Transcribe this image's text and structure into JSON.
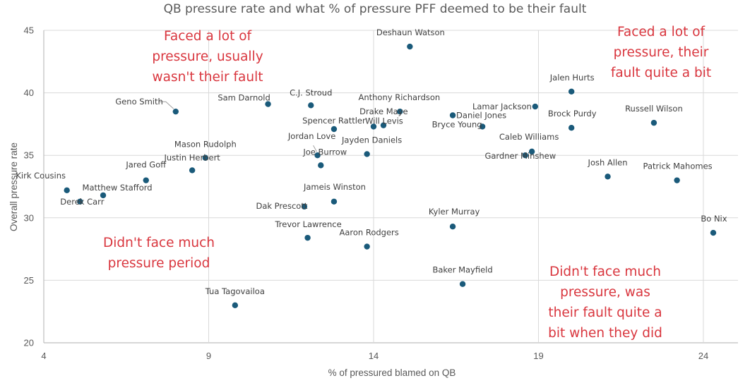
{
  "chart_data": {
    "type": "scatter",
    "title": "QB pressure rate and what % of pressure PFF deemed to be their fault",
    "xlabel": "% of pressured blamed on QB",
    "ylabel": "Overall pressure rate",
    "xlim": [
      4,
      25.05
    ],
    "ylim": [
      20,
      45
    ],
    "xticks": [
      4,
      9,
      14,
      19,
      24
    ],
    "yticks": [
      20,
      25,
      30,
      35,
      40,
      45
    ],
    "grid": true,
    "marker_color": "#1a5a7a",
    "annotation_color": "#d9363e",
    "points": [
      {
        "name": "Kirk Cousins",
        "x": 4.7,
        "y": 32.2
      },
      {
        "name": "Derek Carr",
        "x": 5.1,
        "y": 31.3
      },
      {
        "name": "Matthew Stafford",
        "x": 5.8,
        "y": 31.8
      },
      {
        "name": "Jared Goff",
        "x": 7.1,
        "y": 33.0
      },
      {
        "name": "Geno Smith",
        "x": 8.0,
        "y": 38.5
      },
      {
        "name": "Justin Herbert",
        "x": 8.5,
        "y": 33.8
      },
      {
        "name": "Mason Rudolph",
        "x": 8.9,
        "y": 34.8
      },
      {
        "name": "Tua Tagovailoa",
        "x": 9.8,
        "y": 23.0
      },
      {
        "name": "Sam Darnold",
        "x": 10.8,
        "y": 39.1
      },
      {
        "name": "Dak Prescott",
        "x": 11.9,
        "y": 30.9
      },
      {
        "name": "Trevor Lawrence",
        "x": 12.0,
        "y": 28.4
      },
      {
        "name": "C.J. Stroud",
        "x": 12.1,
        "y": 39.0
      },
      {
        "name": "Jordan Love",
        "x": 12.3,
        "y": 35.0
      },
      {
        "name": "Joe Burrow",
        "x": 12.4,
        "y": 34.2
      },
      {
        "name": "Jameis Winston",
        "x": 12.8,
        "y": 31.3
      },
      {
        "name": "Spencer Rattler",
        "x": 12.8,
        "y": 37.1
      },
      {
        "name": "Aaron Rodgers",
        "x": 13.8,
        "y": 27.7
      },
      {
        "name": "Jayden Daniels",
        "x": 13.8,
        "y": 35.1
      },
      {
        "name": "Will Levis",
        "x": 14.0,
        "y": 37.3
      },
      {
        "name": "",
        "x": 14.3,
        "y": 37.4
      },
      {
        "name": "Drake Maye",
        "x": 14.8,
        "y": 38.5
      },
      {
        "name": "Anthony Richardson",
        "x": 14.8,
        "y": 38.5
      },
      {
        "name": "Deshaun Watson",
        "x": 15.1,
        "y": 43.7
      },
      {
        "name": "Daniel Jones",
        "x": 16.4,
        "y": 38.2
      },
      {
        "name": "Kyler Murray",
        "x": 16.4,
        "y": 29.3
      },
      {
        "name": "Baker Mayfield",
        "x": 16.7,
        "y": 24.7
      },
      {
        "name": "Bryce Young",
        "x": 17.3,
        "y": 37.3
      },
      {
        "name": "Gardner Minshew",
        "x": 18.6,
        "y": 35.0
      },
      {
        "name": "Caleb Williams",
        "x": 18.8,
        "y": 35.3
      },
      {
        "name": "Lamar Jackson",
        "x": 18.9,
        "y": 38.9
      },
      {
        "name": "Jalen Hurts",
        "x": 20.0,
        "y": 40.1
      },
      {
        "name": "Brock Purdy",
        "x": 20.0,
        "y": 37.2
      },
      {
        "name": "Josh Allen",
        "x": 21.1,
        "y": 33.3
      },
      {
        "name": "Russell Wilson",
        "x": 22.5,
        "y": 37.6
      },
      {
        "name": "Patrick Mahomes",
        "x": 23.2,
        "y": 33.0
      },
      {
        "name": "Bo Nix",
        "x": 24.3,
        "y": 28.8
      }
    ],
    "annotations": [
      {
        "quadrant": "top-left",
        "lines": [
          "Faced a lot of",
          "pressure, usually",
          "wasn't their fault"
        ]
      },
      {
        "quadrant": "top-right",
        "lines": [
          "Faced a lot of",
          "pressure, their",
          "fault quite a bit"
        ]
      },
      {
        "quadrant": "bottom-left",
        "lines": [
          "Didn't face much",
          "pressure period"
        ]
      },
      {
        "quadrant": "bottom-right",
        "lines": [
          "Didn't face much",
          "pressure, was",
          "their fault quite a",
          "bit when they did"
        ]
      }
    ]
  }
}
